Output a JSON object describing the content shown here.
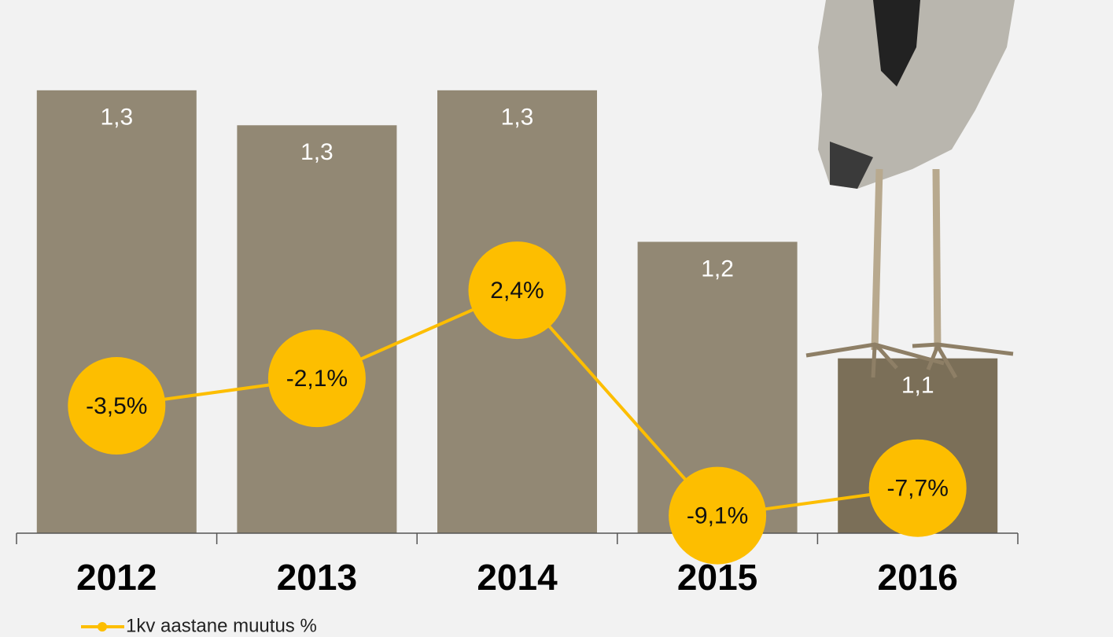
{
  "chart_data": {
    "type": "bar",
    "categories": [
      "2012",
      "2013",
      "2014",
      "2015",
      "2016"
    ],
    "ylim": [
      0.95,
      1.34
    ],
    "y2lim": [
      -10,
      13.2
    ],
    "series": [
      {
        "type": "bar",
        "colors": [
          "#928874",
          "#928874",
          "#928874",
          "#928874",
          "#7b6f58"
        ],
        "values": [
          1.33,
          1.3,
          1.33,
          1.2,
          1.1
        ],
        "value_labels": [
          "1,3",
          "1,3",
          "1,3",
          "1,2",
          "1,1"
        ]
      },
      {
        "type": "line",
        "name": "1kv aastane muutus %",
        "axis": "y2",
        "color": "#fdbe00",
        "values": [
          -3.5,
          -2.1,
          2.4,
          -9.1,
          -7.7
        ],
        "value_labels": [
          "-3,5%",
          "-2,1%",
          "2,4%",
          "-9,1%",
          "-7,7%"
        ]
      }
    ]
  }
}
